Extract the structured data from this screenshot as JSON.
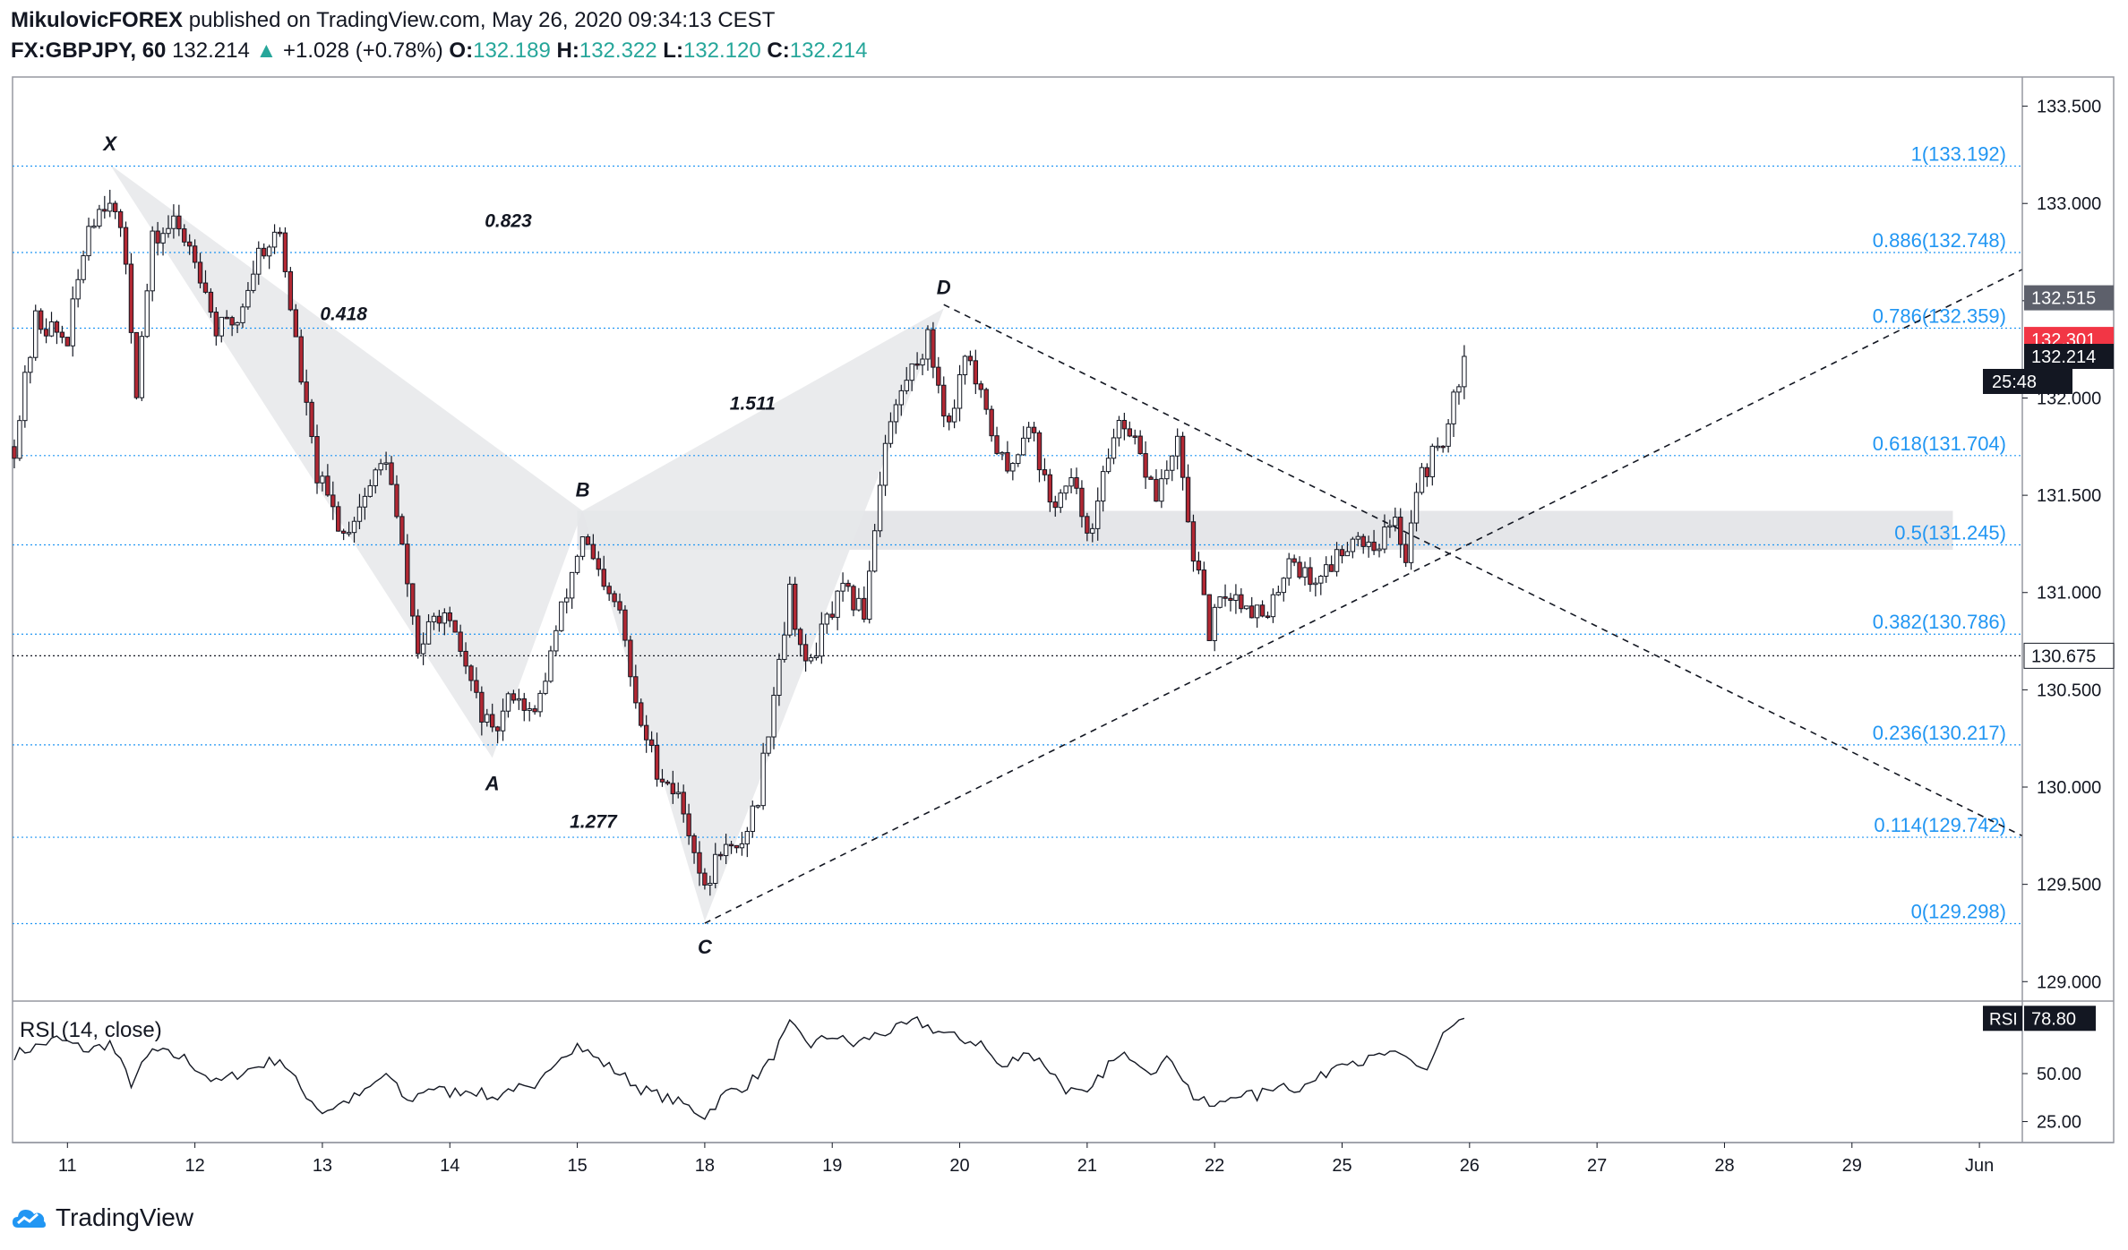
{
  "header": {
    "author": "MikulovicFOREX",
    "published_text": "published on TradingView.com, May 26, 2020 09:34:13 CEST",
    "symbol": "FX:GBPJPY, 60",
    "last_price": "132.214",
    "change_arrow": "▲",
    "change": "+1.028 (+0.78%)",
    "o_label": "O:",
    "o_value": "132.189",
    "h_label": "H:",
    "h_value": "132.322",
    "l_label": "L:",
    "l_value": "132.120",
    "c_label": "C:",
    "c_value": "132.214"
  },
  "footer": {
    "brand": "TradingView",
    "logo_icon": "tradingview-cloud-icon"
  },
  "colors": {
    "up": "#ffffff",
    "down": "#b22833",
    "fib": "#2196f3",
    "axis_text": "#131722",
    "price_tag_red": "#f23645",
    "price_tag_black": "#131722",
    "price_tag_gray": "#5d606b"
  },
  "chart_data": {
    "type": "candlestick",
    "symbol": "FX:GBPJPY",
    "timeframe": "60",
    "ylim": [
      128.9,
      133.65
    ],
    "y_ticks": [
      "133.500",
      "133.000",
      "132.500",
      "132.000",
      "131.500",
      "131.000",
      "130.500",
      "130.000",
      "129.500",
      "129.000"
    ],
    "y_tick_values": [
      133.5,
      133.0,
      132.5,
      132.0,
      131.5,
      131.0,
      130.5,
      130.0,
      129.5,
      129.0
    ],
    "x_ticks": [
      "11",
      "12",
      "13",
      "14",
      "15",
      "18",
      "19",
      "20",
      "21",
      "22",
      "25",
      "26",
      "27",
      "28",
      "29",
      "Jun"
    ],
    "x_tick_bars": [
      10,
      34,
      58,
      82,
      106,
      130,
      154,
      178,
      202,
      226,
      250,
      274,
      298,
      322,
      346,
      370
    ],
    "bars_total": 378,
    "fib_levels": [
      {
        "label": "1(133.192)",
        "value": 133.192
      },
      {
        "label": "0.886(132.748)",
        "value": 132.748
      },
      {
        "label": "0.786(132.359)",
        "value": 132.359
      },
      {
        "label": "0.618(131.704)",
        "value": 131.704
      },
      {
        "label": "0.5(131.245)",
        "value": 131.245
      },
      {
        "label": "0.382(130.786)",
        "value": 130.786
      },
      {
        "label": "0.236(130.217)",
        "value": 130.217
      },
      {
        "label": "0.114(129.742)",
        "value": 129.742
      },
      {
        "label": "0(129.298)",
        "value": 129.298
      }
    ],
    "pattern_points": [
      {
        "label": "X",
        "bar": 18,
        "value": 133.2
      },
      {
        "label": "A",
        "bar": 90,
        "value": 130.15
      },
      {
        "label": "B",
        "bar": 107,
        "value": 131.42
      },
      {
        "label": "C",
        "bar": 130,
        "value": 129.31
      },
      {
        "label": "D",
        "bar": 175,
        "value": 132.46
      }
    ],
    "pattern_ratios": [
      {
        "label": "0.418",
        "bar": 62,
        "value": 132.4
      },
      {
        "label": "0.823",
        "bar": 93,
        "value": 132.88
      },
      {
        "label": "1.511",
        "bar": 139,
        "value": 131.94
      },
      {
        "label": "1.277",
        "bar": 109,
        "value": 129.79
      }
    ],
    "zone": {
      "from_bar": 106,
      "to_bar": 365,
      "low": 131.22,
      "high": 131.42
    },
    "trendlines": [
      {
        "from_bar": 130,
        "from_value": 129.3,
        "to_bar": 378,
        "to_value": 132.66,
        "style": "dashed"
      },
      {
        "from_bar": 175,
        "from_value": 132.48,
        "to_bar": 378,
        "to_value": 129.75,
        "style": "dashed"
      }
    ],
    "dotted_level": {
      "value": 130.675,
      "label": "130.675"
    },
    "price_tags": [
      {
        "label": "132.515",
        "value": 132.515,
        "kind": "gray"
      },
      {
        "label": "132.301",
        "value": 132.301,
        "kind": "red"
      },
      {
        "label": "132.214",
        "value": 132.214,
        "kind": "black"
      }
    ],
    "countdown": "25:48",
    "anchors": [
      {
        "bar": 0,
        "value": 131.75
      },
      {
        "bar": 4,
        "value": 132.4
      },
      {
        "bar": 10,
        "value": 132.3
      },
      {
        "bar": 14,
        "value": 132.9
      },
      {
        "bar": 18,
        "value": 133.05
      },
      {
        "bar": 21,
        "value": 132.7
      },
      {
        "bar": 23,
        "value": 132.05
      },
      {
        "bar": 26,
        "value": 132.8
      },
      {
        "bar": 30,
        "value": 132.9
      },
      {
        "bar": 34,
        "value": 132.75
      },
      {
        "bar": 38,
        "value": 132.35
      },
      {
        "bar": 42,
        "value": 132.4
      },
      {
        "bar": 46,
        "value": 132.75
      },
      {
        "bar": 50,
        "value": 132.85
      },
      {
        "bar": 54,
        "value": 132.1
      },
      {
        "bar": 57,
        "value": 131.6
      },
      {
        "bar": 62,
        "value": 131.3
      },
      {
        "bar": 66,
        "value": 131.5
      },
      {
        "bar": 70,
        "value": 131.7
      },
      {
        "bar": 74,
        "value": 131.05
      },
      {
        "bar": 76,
        "value": 130.7
      },
      {
        "bar": 80,
        "value": 130.9
      },
      {
        "bar": 84,
        "value": 130.7
      },
      {
        "bar": 87,
        "value": 130.45
      },
      {
        "bar": 90,
        "value": 130.25
      },
      {
        "bar": 94,
        "value": 130.5
      },
      {
        "bar": 98,
        "value": 130.35
      },
      {
        "bar": 102,
        "value": 130.8
      },
      {
        "bar": 107,
        "value": 131.3
      },
      {
        "bar": 111,
        "value": 131.0
      },
      {
        "bar": 114,
        "value": 130.9
      },
      {
        "bar": 117,
        "value": 130.4
      },
      {
        "bar": 121,
        "value": 130.1
      },
      {
        "bar": 125,
        "value": 129.95
      },
      {
        "bar": 128,
        "value": 129.7
      },
      {
        "bar": 130,
        "value": 129.45
      },
      {
        "bar": 133,
        "value": 129.7
      },
      {
        "bar": 136,
        "value": 129.65
      },
      {
        "bar": 140,
        "value": 129.95
      },
      {
        "bar": 143,
        "value": 130.5
      },
      {
        "bar": 146,
        "value": 131.0
      },
      {
        "bar": 149,
        "value": 130.6
      },
      {
        "bar": 153,
        "value": 130.85
      },
      {
        "bar": 156,
        "value": 131.0
      },
      {
        "bar": 160,
        "value": 130.9
      },
      {
        "bar": 164,
        "value": 131.8
      },
      {
        "bar": 168,
        "value": 132.1
      },
      {
        "bar": 172,
        "value": 132.3
      },
      {
        "bar": 176,
        "value": 131.85
      },
      {
        "bar": 179,
        "value": 132.25
      },
      {
        "bar": 183,
        "value": 131.9
      },
      {
        "bar": 187,
        "value": 131.6
      },
      {
        "bar": 191,
        "value": 131.9
      },
      {
        "bar": 195,
        "value": 131.45
      },
      {
        "bar": 199,
        "value": 131.55
      },
      {
        "bar": 203,
        "value": 131.3
      },
      {
        "bar": 207,
        "value": 131.85
      },
      {
        "bar": 211,
        "value": 131.75
      },
      {
        "bar": 215,
        "value": 131.5
      },
      {
        "bar": 219,
        "value": 131.75
      },
      {
        "bar": 222,
        "value": 131.2
      },
      {
        "bar": 225,
        "value": 130.8
      },
      {
        "bar": 228,
        "value": 131.0
      },
      {
        "bar": 232,
        "value": 130.95
      },
      {
        "bar": 236,
        "value": 130.85
      },
      {
        "bar": 240,
        "value": 131.2
      },
      {
        "bar": 244,
        "value": 131.05
      },
      {
        "bar": 248,
        "value": 131.15
      },
      {
        "bar": 252,
        "value": 131.3
      },
      {
        "bar": 256,
        "value": 131.25
      },
      {
        "bar": 260,
        "value": 131.35
      },
      {
        "bar": 262,
        "value": 131.2
      },
      {
        "bar": 264,
        "value": 131.55
      },
      {
        "bar": 267,
        "value": 131.7
      },
      {
        "bar": 270,
        "value": 131.85
      },
      {
        "bar": 273,
        "value": 132.214
      }
    ],
    "rsi": {
      "label": "RSI (14, close)",
      "value_label": "RSI",
      "value": "78.80",
      "ylim": [
        15,
        85
      ],
      "y_ticks": [
        "50.00",
        "25.00"
      ],
      "y_tick_values": [
        50,
        25
      ],
      "anchors": [
        {
          "bar": 0,
          "value": 60
        },
        {
          "bar": 8,
          "value": 68
        },
        {
          "bar": 14,
          "value": 62
        },
        {
          "bar": 18,
          "value": 66
        },
        {
          "bar": 22,
          "value": 45
        },
        {
          "bar": 26,
          "value": 62
        },
        {
          "bar": 32,
          "value": 58
        },
        {
          "bar": 38,
          "value": 45
        },
        {
          "bar": 44,
          "value": 52
        },
        {
          "bar": 50,
          "value": 58
        },
        {
          "bar": 54,
          "value": 42
        },
        {
          "bar": 58,
          "value": 30
        },
        {
          "bar": 62,
          "value": 35
        },
        {
          "bar": 66,
          "value": 40
        },
        {
          "bar": 70,
          "value": 50
        },
        {
          "bar": 74,
          "value": 35
        },
        {
          "bar": 78,
          "value": 43
        },
        {
          "bar": 82,
          "value": 40
        },
        {
          "bar": 86,
          "value": 42
        },
        {
          "bar": 90,
          "value": 37
        },
        {
          "bar": 94,
          "value": 43
        },
        {
          "bar": 98,
          "value": 40
        },
        {
          "bar": 102,
          "value": 58
        },
        {
          "bar": 106,
          "value": 65
        },
        {
          "bar": 110,
          "value": 57
        },
        {
          "bar": 114,
          "value": 50
        },
        {
          "bar": 118,
          "value": 42
        },
        {
          "bar": 122,
          "value": 38
        },
        {
          "bar": 126,
          "value": 34
        },
        {
          "bar": 130,
          "value": 28
        },
        {
          "bar": 134,
          "value": 40
        },
        {
          "bar": 138,
          "value": 44
        },
        {
          "bar": 142,
          "value": 55
        },
        {
          "bar": 146,
          "value": 75
        },
        {
          "bar": 150,
          "value": 65
        },
        {
          "bar": 154,
          "value": 70
        },
        {
          "bar": 158,
          "value": 65
        },
        {
          "bar": 162,
          "value": 70
        },
        {
          "bar": 166,
          "value": 73
        },
        {
          "bar": 170,
          "value": 77
        },
        {
          "bar": 174,
          "value": 72
        },
        {
          "bar": 178,
          "value": 68
        },
        {
          "bar": 182,
          "value": 66
        },
        {
          "bar": 186,
          "value": 52
        },
        {
          "bar": 190,
          "value": 62
        },
        {
          "bar": 194,
          "value": 55
        },
        {
          "bar": 198,
          "value": 42
        },
        {
          "bar": 202,
          "value": 38
        },
        {
          "bar": 206,
          "value": 55
        },
        {
          "bar": 210,
          "value": 60
        },
        {
          "bar": 214,
          "value": 52
        },
        {
          "bar": 218,
          "value": 58
        },
        {
          "bar": 222,
          "value": 38
        },
        {
          "bar": 226,
          "value": 32
        },
        {
          "bar": 230,
          "value": 40
        },
        {
          "bar": 234,
          "value": 38
        },
        {
          "bar": 238,
          "value": 45
        },
        {
          "bar": 242,
          "value": 42
        },
        {
          "bar": 246,
          "value": 48
        },
        {
          "bar": 250,
          "value": 58
        },
        {
          "bar": 254,
          "value": 56
        },
        {
          "bar": 258,
          "value": 60
        },
        {
          "bar": 262,
          "value": 58
        },
        {
          "bar": 266,
          "value": 52
        },
        {
          "bar": 269,
          "value": 70
        },
        {
          "bar": 273,
          "value": 78.8
        }
      ]
    }
  }
}
